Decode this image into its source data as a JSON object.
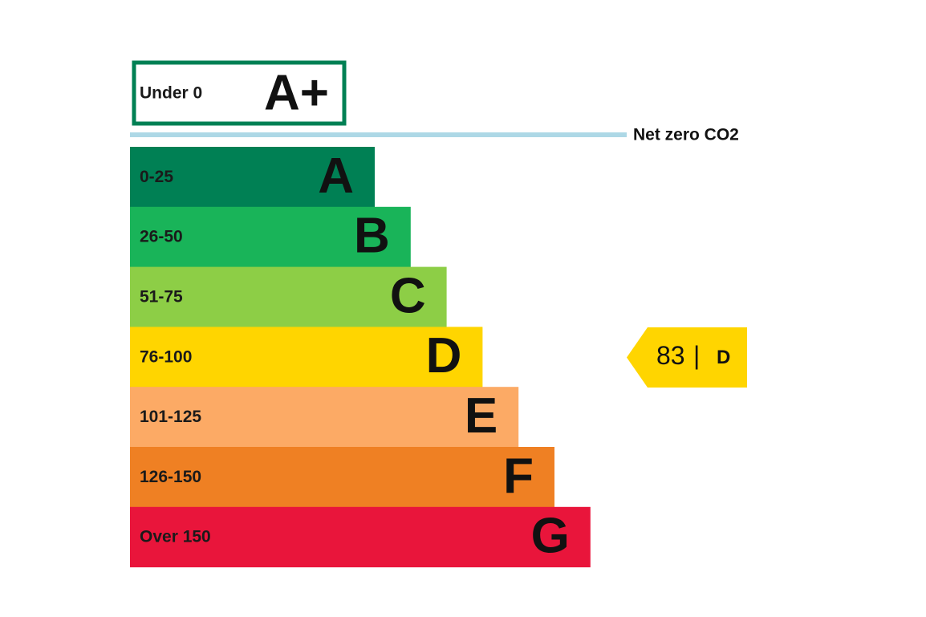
{
  "top_band": {
    "range": "Under 0",
    "letter": "A+",
    "color": "#008054"
  },
  "net_zero": {
    "label": "Net zero CO2",
    "color": "#add8e6"
  },
  "bands": [
    {
      "range": "0-25",
      "letter": "A",
      "color": "#008054"
    },
    {
      "range": "26-50",
      "letter": "B",
      "color": "#19b459"
    },
    {
      "range": "51-75",
      "letter": "C",
      "color": "#8dce46"
    },
    {
      "range": "76-100",
      "letter": "D",
      "color": "#ffd500"
    },
    {
      "range": "101-125",
      "letter": "E",
      "color": "#fcaa65"
    },
    {
      "range": "126-150",
      "letter": "F",
      "color": "#ef8023"
    },
    {
      "range": "Over 150",
      "letter": "G",
      "color": "#e9153b"
    }
  ],
  "rating": {
    "score": 83,
    "separator": "|",
    "letter": "D",
    "color": "#ffd500"
  }
}
